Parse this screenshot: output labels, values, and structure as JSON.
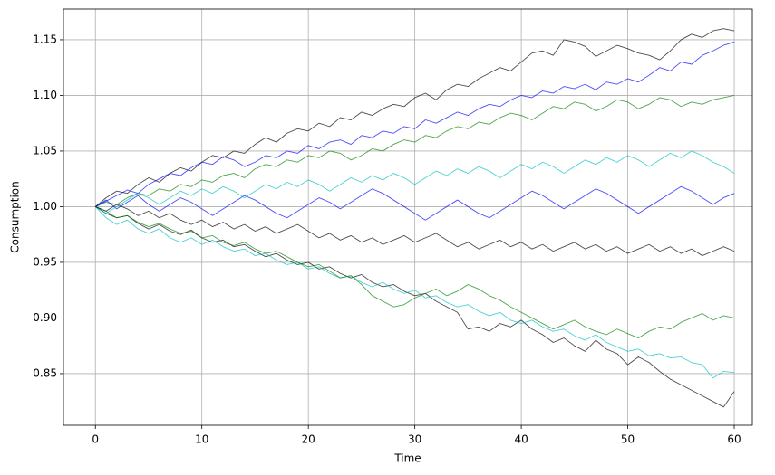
{
  "chart_data": {
    "type": "line",
    "xlabel": "Time",
    "ylabel": "Consumption",
    "x": [
      0,
      1,
      2,
      3,
      4,
      5,
      6,
      7,
      8,
      9,
      10,
      11,
      12,
      13,
      14,
      15,
      16,
      17,
      18,
      19,
      20,
      21,
      22,
      23,
      24,
      25,
      26,
      27,
      28,
      29,
      30,
      31,
      32,
      33,
      34,
      35,
      36,
      37,
      38,
      39,
      40,
      41,
      42,
      43,
      44,
      45,
      46,
      47,
      48,
      49,
      50,
      51,
      52,
      53,
      54,
      55,
      56,
      57,
      58,
      59,
      60
    ],
    "xlim": [
      -3,
      61.7
    ],
    "xticks": [
      0,
      10,
      20,
      30,
      40,
      50,
      60
    ],
    "ylim": [
      0.8036,
      1.1776
    ],
    "yticks": [
      0.85,
      {
        "value": 0.9,
        "label": "0.90"
      },
      0.95,
      {
        "value": 1,
        "label": "1.00"
      },
      1.05,
      {
        "value": 1.1,
        "label": "1.10"
      },
      1.15
    ],
    "grid": true,
    "series": [
      {
        "color": "#000000",
        "values": [
          1.0,
          1.008,
          1.014,
          1.012,
          1.02,
          1.026,
          1.022,
          1.03,
          1.035,
          1.032,
          1.04,
          1.046,
          1.044,
          1.05,
          1.048,
          1.056,
          1.062,
          1.058,
          1.066,
          1.07,
          1.068,
          1.075,
          1.072,
          1.08,
          1.078,
          1.085,
          1.082,
          1.088,
          1.092,
          1.09,
          1.098,
          1.102,
          1.096,
          1.105,
          1.11,
          1.108,
          1.115,
          1.12,
          1.125,
          1.122,
          1.13,
          1.138,
          1.14,
          1.136,
          1.15,
          1.148,
          1.144,
          1.135,
          1.14,
          1.145,
          1.142,
          1.138,
          1.136,
          1.132,
          1.14,
          1.15,
          1.155,
          1.152,
          1.158,
          1.16,
          1.158
        ]
      },
      {
        "color": "#000000",
        "values": [
          1.0,
          0.994,
          0.99,
          0.992,
          0.985,
          0.98,
          0.984,
          0.978,
          0.975,
          0.979,
          0.972,
          0.968,
          0.97,
          0.964,
          0.966,
          0.96,
          0.955,
          0.958,
          0.952,
          0.948,
          0.95,
          0.944,
          0.946,
          0.94,
          0.936,
          0.939,
          0.932,
          0.928,
          0.93,
          0.924,
          0.92,
          0.922,
          0.915,
          0.91,
          0.905,
          0.89,
          0.892,
          0.888,
          0.895,
          0.892,
          0.898,
          0.89,
          0.885,
          0.878,
          0.882,
          0.875,
          0.87,
          0.88,
          0.872,
          0.868,
          0.858,
          0.865,
          0.86,
          0.852,
          0.845,
          0.84,
          0.835,
          0.83,
          0.825,
          0.82,
          0.834
        ]
      },
      {
        "color": "#0000ff",
        "values": [
          1.0,
          1.005,
          1.01,
          1.015,
          1.012,
          1.02,
          1.025,
          1.03,
          1.028,
          1.035,
          1.04,
          1.038,
          1.045,
          1.042,
          1.036,
          1.04,
          1.046,
          1.044,
          1.05,
          1.048,
          1.055,
          1.052,
          1.058,
          1.06,
          1.056,
          1.064,
          1.062,
          1.068,
          1.066,
          1.072,
          1.07,
          1.078,
          1.075,
          1.08,
          1.085,
          1.082,
          1.088,
          1.092,
          1.09,
          1.096,
          1.1,
          1.098,
          1.104,
          1.102,
          1.108,
          1.106,
          1.11,
          1.105,
          1.112,
          1.11,
          1.115,
          1.112,
          1.118,
          1.125,
          1.122,
          1.13,
          1.128,
          1.136,
          1.14,
          1.145,
          1.148
        ]
      },
      {
        "color": "#00bfbf",
        "values": [
          1.0,
          0.99,
          0.984,
          0.988,
          0.98,
          0.976,
          0.98,
          0.972,
          0.968,
          0.972,
          0.966,
          0.97,
          0.964,
          0.96,
          0.962,
          0.956,
          0.958,
          0.952,
          0.948,
          0.95,
          0.944,
          0.946,
          0.94,
          0.936,
          0.938,
          0.932,
          0.928,
          0.932,
          0.926,
          0.922,
          0.925,
          0.918,
          0.92,
          0.914,
          0.91,
          0.912,
          0.906,
          0.902,
          0.905,
          0.898,
          0.895,
          0.898,
          0.892,
          0.888,
          0.89,
          0.884,
          0.88,
          0.885,
          0.878,
          0.874,
          0.87,
          0.872,
          0.866,
          0.868,
          0.864,
          0.865,
          0.86,
          0.858,
          0.846,
          0.852,
          0.851
        ]
      },
      {
        "color": "#008000",
        "values": [
          1.0,
          1.004,
          1.002,
          1.008,
          1.012,
          1.01,
          1.016,
          1.014,
          1.02,
          1.018,
          1.024,
          1.022,
          1.028,
          1.03,
          1.026,
          1.034,
          1.038,
          1.036,
          1.042,
          1.04,
          1.046,
          1.044,
          1.05,
          1.048,
          1.042,
          1.046,
          1.052,
          1.05,
          1.056,
          1.06,
          1.058,
          1.064,
          1.062,
          1.068,
          1.072,
          1.07,
          1.076,
          1.074,
          1.08,
          1.084,
          1.082,
          1.078,
          1.084,
          1.09,
          1.088,
          1.094,
          1.092,
          1.086,
          1.09,
          1.096,
          1.094,
          1.088,
          1.092,
          1.098,
          1.096,
          1.09,
          1.094,
          1.092,
          1.096,
          1.098,
          1.1
        ]
      },
      {
        "color": "#008000",
        "values": [
          1.0,
          0.996,
          0.99,
          0.992,
          0.986,
          0.982,
          0.985,
          0.98,
          0.976,
          0.978,
          0.972,
          0.974,
          0.968,
          0.965,
          0.968,
          0.962,
          0.958,
          0.96,
          0.955,
          0.95,
          0.946,
          0.948,
          0.942,
          0.936,
          0.938,
          0.93,
          0.92,
          0.915,
          0.91,
          0.912,
          0.918,
          0.922,
          0.926,
          0.92,
          0.924,
          0.93,
          0.926,
          0.92,
          0.916,
          0.91,
          0.905,
          0.9,
          0.895,
          0.89,
          0.894,
          0.898,
          0.892,
          0.888,
          0.885,
          0.89,
          0.886,
          0.882,
          0.888,
          0.892,
          0.89,
          0.896,
          0.9,
          0.904,
          0.898,
          0.902,
          0.9
        ]
      },
      {
        "color": "#0000ff",
        "values": [
          1.0,
          1.006,
          0.998,
          1.004,
          1.01,
          1.002,
          0.996,
          1.002,
          1.008,
          1.004,
          0.998,
          0.992,
          0.998,
          1.004,
          1.01,
          1.006,
          1.0,
          0.994,
          0.99,
          0.996,
          1.002,
          1.008,
          1.004,
          0.998,
          1.004,
          1.01,
          1.016,
          1.012,
          1.006,
          1.0,
          0.994,
          0.988,
          0.994,
          1.0,
          1.006,
          1.0,
          0.994,
          0.99,
          0.996,
          1.002,
          1.008,
          1.014,
          1.01,
          1.004,
          0.998,
          1.004,
          1.01,
          1.016,
          1.012,
          1.006,
          1.0,
          0.994,
          1.0,
          1.006,
          1.012,
          1.018,
          1.014,
          1.008,
          1.002,
          1.008,
          1.012
        ]
      },
      {
        "color": "#00bfbf",
        "values": [
          1.0,
          0.994,
          1.0,
          1.006,
          1.012,
          1.008,
          1.002,
          1.008,
          1.014,
          1.01,
          1.016,
          1.012,
          1.018,
          1.014,
          1.008,
          1.014,
          1.02,
          1.016,
          1.022,
          1.018,
          1.024,
          1.02,
          1.014,
          1.02,
          1.026,
          1.022,
          1.028,
          1.024,
          1.03,
          1.026,
          1.02,
          1.026,
          1.032,
          1.028,
          1.034,
          1.03,
          1.036,
          1.032,
          1.026,
          1.032,
          1.038,
          1.034,
          1.04,
          1.036,
          1.03,
          1.036,
          1.042,
          1.038,
          1.044,
          1.04,
          1.046,
          1.042,
          1.036,
          1.042,
          1.048,
          1.044,
          1.05,
          1.046,
          1.04,
          1.036,
          1.03
        ]
      },
      {
        "color": "#000000",
        "values": [
          1.0,
          0.996,
          1.002,
          0.998,
          0.992,
          0.996,
          0.99,
          0.994,
          0.988,
          0.984,
          0.988,
          0.982,
          0.986,
          0.98,
          0.984,
          0.978,
          0.982,
          0.976,
          0.98,
          0.984,
          0.978,
          0.972,
          0.976,
          0.97,
          0.974,
          0.968,
          0.972,
          0.966,
          0.97,
          0.974,
          0.968,
          0.972,
          0.976,
          0.97,
          0.964,
          0.968,
          0.962,
          0.966,
          0.97,
          0.964,
          0.968,
          0.962,
          0.966,
          0.96,
          0.964,
          0.968,
          0.962,
          0.966,
          0.96,
          0.964,
          0.958,
          0.962,
          0.966,
          0.96,
          0.964,
          0.958,
          0.962,
          0.956,
          0.96,
          0.964,
          0.96
        ]
      }
    ]
  }
}
